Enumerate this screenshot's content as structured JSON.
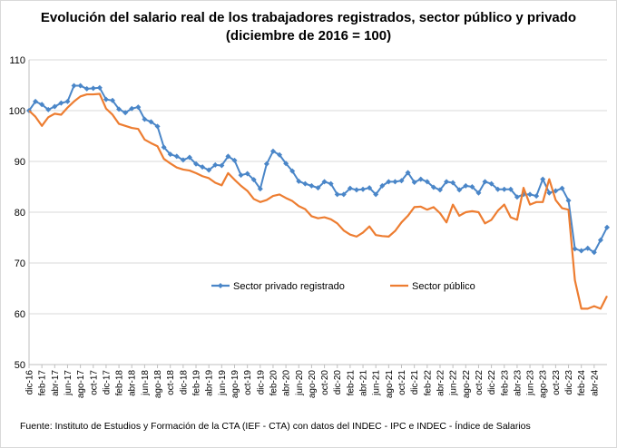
{
  "chart_data": {
    "type": "line",
    "title": "Evolución del salario real de los trabajadores registrados, sector público y privado (diciembre de 2016 = 100)",
    "xlabel": "",
    "ylabel": "",
    "ylim": [
      50,
      110
    ],
    "yticks": [
      50,
      60,
      70,
      80,
      90,
      100,
      110
    ],
    "grid": "horizontal",
    "legend": "center-bottom",
    "x_tick_labels": [
      "dic-16",
      "feb-17",
      "abr-17",
      "jun-17",
      "ago-17",
      "oct-17",
      "dic-17",
      "feb-18",
      "abr-18",
      "jun-18",
      "ago-18",
      "oct-18",
      "dic-18",
      "feb-19",
      "abr-19",
      "jun-19",
      "ago-19",
      "oct-19",
      "dic-19",
      "feb-20",
      "abr-20",
      "jun-20",
      "ago-20",
      "oct-20",
      "dic-20",
      "feb-21",
      "abr-21",
      "jun-21",
      "ago-21",
      "oct-21",
      "dic-21",
      "feb-22",
      "abr-22",
      "jun-22",
      "ago-22",
      "oct-22",
      "dic-22",
      "feb-23",
      "abr-23",
      "jun-23",
      "ago-23",
      "oct-23",
      "dic-23",
      "feb-24",
      "abr-24"
    ],
    "series": [
      {
        "name": "Sector privado registrado",
        "color": "#4a86c8",
        "marker": "diamond",
        "values": [
          100.0,
          101.8,
          101.2,
          100.2,
          100.8,
          101.5,
          101.8,
          104.9,
          104.9,
          104.3,
          104.4,
          104.5,
          102.2,
          102.0,
          100.3,
          99.6,
          100.4,
          100.7,
          98.3,
          97.8,
          96.9,
          92.8,
          91.4,
          91.0,
          90.3,
          90.8,
          89.5,
          88.9,
          88.3,
          89.3,
          89.2,
          91.0,
          90.2,
          87.3,
          87.6,
          86.4,
          84.6,
          89.5,
          92.0,
          91.3,
          89.6,
          88.1,
          86.1,
          85.6,
          85.2,
          84.8,
          86.0,
          85.6,
          83.5,
          83.5,
          84.7,
          84.4,
          84.5,
          84.8,
          83.5,
          85.2,
          86.0,
          86.0,
          86.2,
          87.8,
          85.9,
          86.5,
          86.0,
          84.9,
          84.4,
          86.0,
          85.8,
          84.4,
          85.2,
          85.0,
          83.8,
          86.0,
          85.6,
          84.5,
          84.5,
          84.5,
          83.0,
          83.5,
          83.5,
          83.2,
          86.5,
          83.8,
          84.2,
          84.7,
          82.3,
          72.8,
          72.4,
          72.9,
          72.1,
          74.5,
          77.0
        ]
      },
      {
        "name": "Sector público",
        "color": "#ed7d31",
        "marker": "none",
        "values": [
          100.0,
          98.8,
          97.0,
          98.7,
          99.4,
          99.2,
          100.6,
          101.8,
          102.8,
          103.2,
          103.2,
          103.3,
          100.4,
          99.2,
          97.4,
          97.0,
          96.6,
          96.4,
          94.3,
          93.6,
          93.0,
          90.5,
          89.6,
          88.8,
          88.4,
          88.2,
          87.7,
          87.1,
          86.7,
          85.8,
          85.3,
          87.7,
          86.4,
          85.2,
          84.2,
          82.6,
          82.0,
          82.4,
          83.2,
          83.5,
          82.8,
          82.2,
          81.2,
          80.6,
          79.2,
          78.8,
          79.0,
          78.6,
          77.8,
          76.4,
          75.6,
          75.2,
          76.0,
          77.2,
          75.5,
          75.3,
          75.2,
          76.3,
          78.0,
          79.3,
          81.0,
          81.1,
          80.5,
          81.0,
          79.8,
          78.0,
          81.5,
          79.3,
          80.0,
          80.2,
          80.0,
          77.8,
          78.5,
          80.3,
          81.5,
          79.0,
          78.5,
          84.8,
          81.5,
          82.0,
          82.0,
          86.5,
          82.4,
          80.8,
          80.5,
          66.6,
          61.0,
          61.0,
          61.5,
          61.0,
          63.5
        ]
      }
    ]
  },
  "source_note": "Fuente: Instituto de Estudios y Formación de la CTA (IEF - CTA) con datos del INDEC - IPC e INDEC - Índice de Salarios"
}
